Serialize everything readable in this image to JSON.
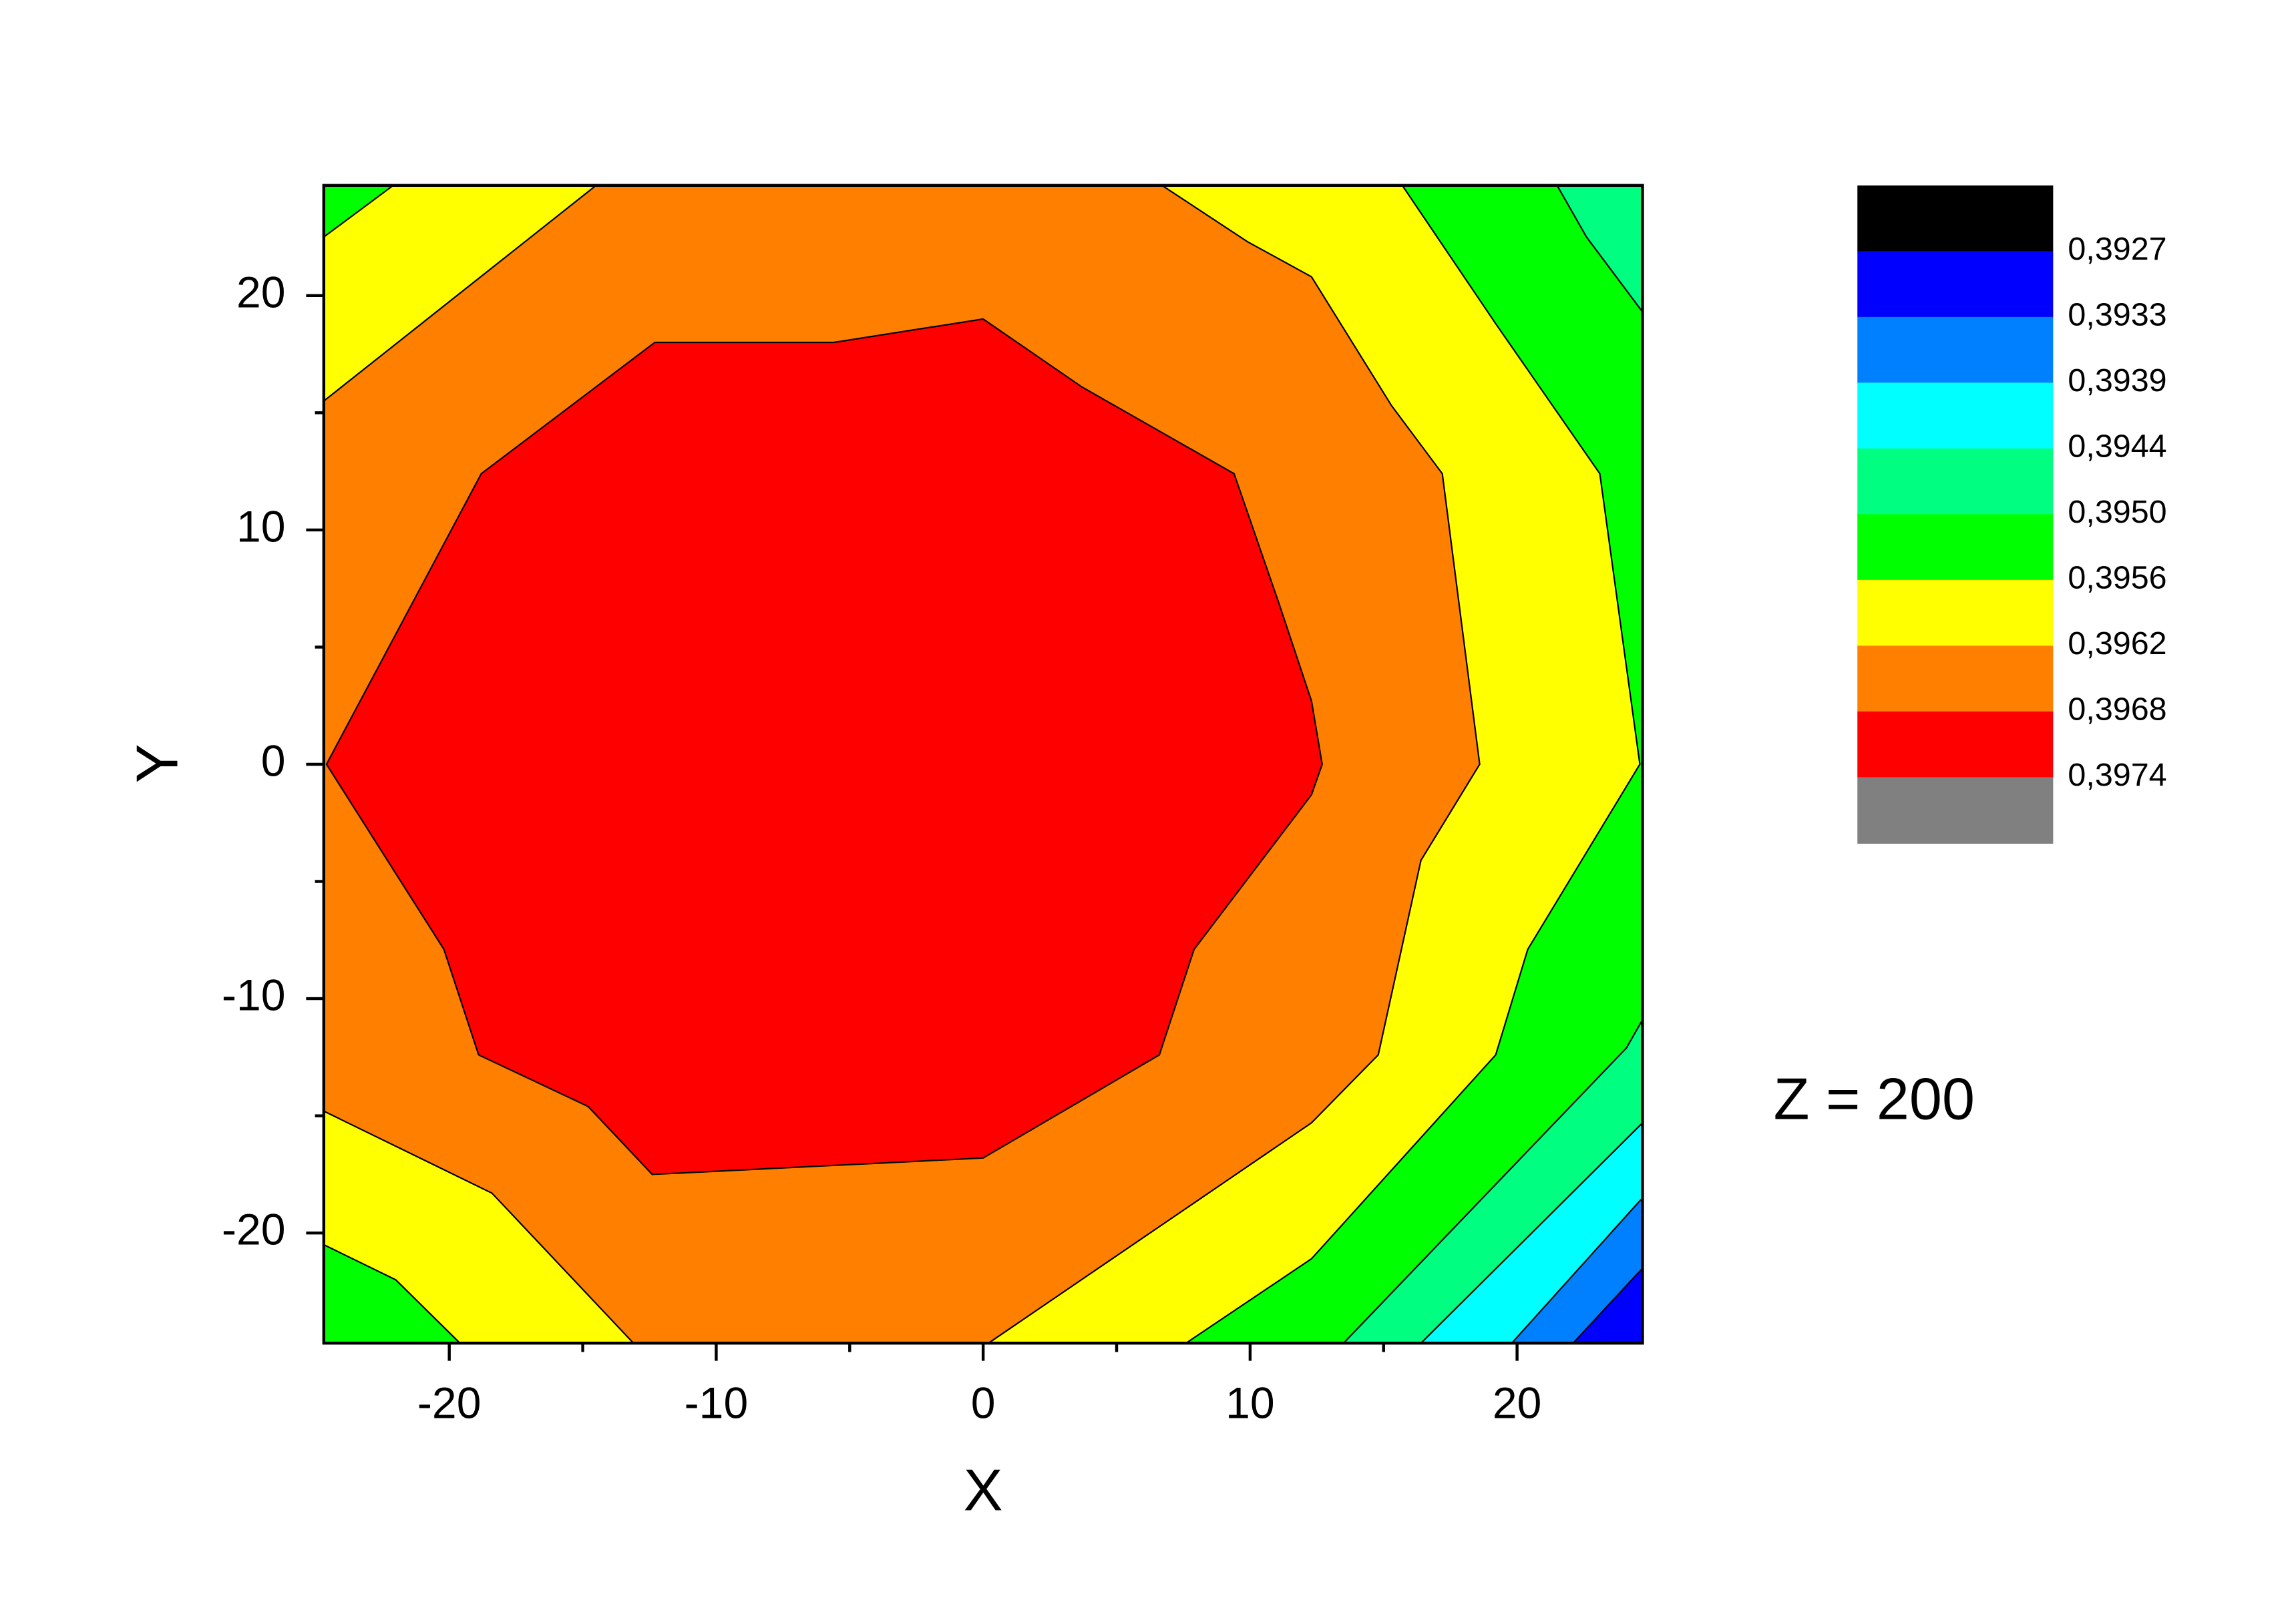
{
  "chart_data": {
    "type": "contour",
    "xlabel": "X",
    "ylabel": "Y",
    "annotation": "Z = 200",
    "xlim": [
      -24.7,
      24.7
    ],
    "ylim": [
      -24.7,
      24.7
    ],
    "xticks": [
      -20,
      -10,
      0,
      10,
      20
    ],
    "yticks": [
      -20,
      -10,
      0,
      10,
      20
    ],
    "xminor_ticks": [
      -15,
      -5,
      5,
      15
    ],
    "yminor_ticks": [
      -15,
      -5,
      5,
      15
    ],
    "background_color": "#00ff00",
    "regions": [
      {
        "color": "#ffff00",
        "x": [
          -24.7,
          -22.1,
          15.7,
          19.2,
          23.1,
          24.6,
          20.4,
          19.2,
          12.3,
          7.6,
          -19.6,
          -22.0,
          -24.7
        ],
        "y": [
          22.5,
          24.7,
          24.7,
          18.8,
          12.4,
          0,
          -7.9,
          -12.4,
          -21.1,
          -24.7,
          -24.7,
          -22.0,
          -20.5
        ]
      },
      {
        "color": "#ff8000",
        "x": [
          -24.7,
          -14.5,
          6.7,
          9.9,
          12.3,
          15.3,
          17.2,
          18.6,
          16.4,
          14.8,
          12.3,
          0.2,
          -13.1,
          -18.4,
          -24.7
        ],
        "y": [
          15.5,
          24.7,
          24.7,
          22.3,
          20.8,
          15.3,
          12.4,
          0,
          -4.1,
          -12.4,
          -15.3,
          -24.7,
          -24.7,
          -18.3,
          -14.8
        ]
      },
      {
        "color": "#ff0000",
        "x": [
          -24.6,
          -18.8,
          -12.3,
          -5.6,
          0,
          3.7,
          9.4,
          11.1,
          12.3,
          12.7,
          12.3,
          7.9,
          6.6,
          0,
          -12.4,
          -14.8,
          -18.9,
          -20.2
        ],
        "y": [
          0,
          12.4,
          18.0,
          18.0,
          19.0,
          16.1,
          12.4,
          6.8,
          2.7,
          0,
          -1.3,
          -7.9,
          -12.4,
          -16.8,
          -17.5,
          -14.6,
          -12.4,
          -7.9
        ]
      },
      {
        "color": "#00ff80",
        "x": [
          21.5,
          24.7,
          24.7,
          22.6
        ],
        "y": [
          24.7,
          24.7,
          19.3,
          22.5
        ]
      },
      {
        "color": "#00ff80",
        "x": [
          24.7,
          24.1,
          13.5,
          24.7
        ],
        "y": [
          -10.9,
          -12.1,
          -24.7,
          -24.7
        ]
      },
      {
        "color": "#00ffff",
        "x": [
          24.7,
          16.4,
          24.7
        ],
        "y": [
          -15.3,
          -24.7,
          -24.7
        ]
      },
      {
        "color": "#0080ff",
        "x": [
          24.7,
          19.8,
          24.7
        ],
        "y": [
          -18.5,
          -24.7,
          -24.7
        ]
      },
      {
        "color": "#0000ff",
        "x": [
          24.7,
          22.1,
          24.7
        ],
        "y": [
          -21.5,
          -24.7,
          -24.7
        ]
      }
    ],
    "level_colors": [
      "#000000",
      "#0000ff",
      "#0080ff",
      "#00ffff",
      "#00ff80",
      "#00ff00",
      "#ffff00",
      "#ff8000",
      "#ff0000",
      "#808080"
    ],
    "levels": [
      {
        "value": 0.3927,
        "label": "0,3927"
      },
      {
        "value": 0.3933,
        "label": "0,3933"
      },
      {
        "value": 0.3939,
        "label": "0,3939"
      },
      {
        "value": 0.3944,
        "label": "0,3944"
      },
      {
        "value": 0.395,
        "label": "0,3950"
      },
      {
        "value": 0.3956,
        "label": "0,3956"
      },
      {
        "value": 0.3962,
        "label": "0,3962"
      },
      {
        "value": 0.3968,
        "label": "0,3968"
      },
      {
        "value": 0.3974,
        "label": "0,3974"
      }
    ]
  }
}
